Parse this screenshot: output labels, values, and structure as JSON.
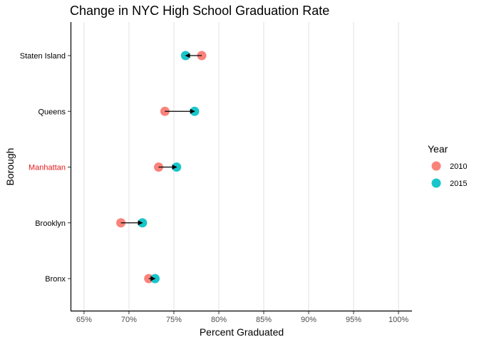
{
  "chart_data": {
    "type": "dumbbell",
    "title": "Change in NYC High School Graduation Rate",
    "xlabel": "Percent Graduated",
    "ylabel": "Borough",
    "xlim": [
      63.5,
      101.5
    ],
    "x_ticks": [
      65,
      70,
      75,
      80,
      85,
      90,
      95,
      100
    ],
    "x_tick_labels": [
      "65%",
      "70%",
      "75%",
      "80%",
      "85%",
      "90%",
      "95%",
      "100%"
    ],
    "categories": [
      "Staten Island",
      "Queens",
      "Manhattan",
      "Brooklyn",
      "Bronx"
    ],
    "highlighted_category": "Manhattan",
    "highlight_color": "#e41a1c",
    "legend": {
      "title": "Year",
      "position": "right",
      "entries": [
        {
          "label": "2010",
          "color": "#F8766D"
        },
        {
          "label": "2015",
          "color": "#00BFC4"
        }
      ]
    },
    "series": [
      {
        "name": "2010",
        "color": "#F8766D",
        "values": [
          78.1,
          74.0,
          73.3,
          69.1,
          72.2
        ]
      },
      {
        "name": "2015",
        "color": "#00BFC4",
        "values": [
          76.3,
          77.3,
          75.3,
          71.5,
          72.9
        ]
      }
    ],
    "grid": {
      "vertical_major": true,
      "horizontal": false
    },
    "arrows": true
  }
}
